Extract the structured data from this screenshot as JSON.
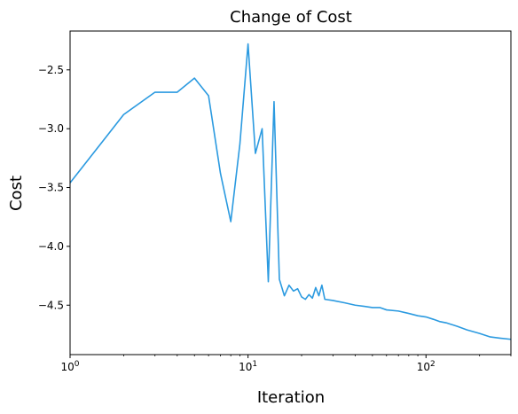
{
  "chart_data": {
    "type": "line",
    "title": "Change of Cost",
    "xlabel": "Iteration",
    "ylabel": "Cost",
    "xscale": "log",
    "xlim": [
      1,
      300
    ],
    "ylim": [
      -4.92,
      -2.17
    ],
    "grid": false,
    "color": "#2b9ae0",
    "x_ticks": [
      {
        "value": 1,
        "base": "10",
        "exp": "0"
      },
      {
        "value": 10,
        "base": "10",
        "exp": "1"
      },
      {
        "value": 100,
        "base": "10",
        "exp": "2"
      }
    ],
    "y_ticks": [
      {
        "value": -2.5,
        "label": "−2.5"
      },
      {
        "value": -3.0,
        "label": "−3.0"
      },
      {
        "value": -3.5,
        "label": "−3.5"
      },
      {
        "value": -4.0,
        "label": "−4.0"
      },
      {
        "value": -4.5,
        "label": "−4.5"
      }
    ],
    "series": [
      {
        "x": [
          1,
          2,
          3,
          4,
          5,
          6,
          7,
          8,
          9,
          10,
          11,
          12,
          13,
          14,
          15,
          16,
          17,
          18,
          19,
          20,
          21,
          22,
          23,
          24,
          25,
          26,
          27,
          30,
          35,
          40,
          45,
          50,
          55,
          60,
          70,
          80,
          90,
          100,
          110,
          120,
          130,
          150,
          170,
          200,
          230,
          260,
          300
        ],
        "y": [
          -3.46,
          -2.88,
          -2.69,
          -2.69,
          -2.57,
          -2.72,
          -3.38,
          -3.79,
          -3.13,
          -2.28,
          -3.21,
          -3.0,
          -4.3,
          -2.77,
          -4.28,
          -4.42,
          -4.33,
          -4.38,
          -4.36,
          -4.43,
          -4.45,
          -4.41,
          -4.44,
          -4.35,
          -4.42,
          -4.33,
          -4.45,
          -4.46,
          -4.48,
          -4.5,
          -4.51,
          -4.52,
          -4.52,
          -4.54,
          -4.55,
          -4.57,
          -4.59,
          -4.6,
          -4.62,
          -4.64,
          -4.65,
          -4.68,
          -4.71,
          -4.74,
          -4.77,
          -4.78,
          -4.79
        ]
      }
    ]
  }
}
